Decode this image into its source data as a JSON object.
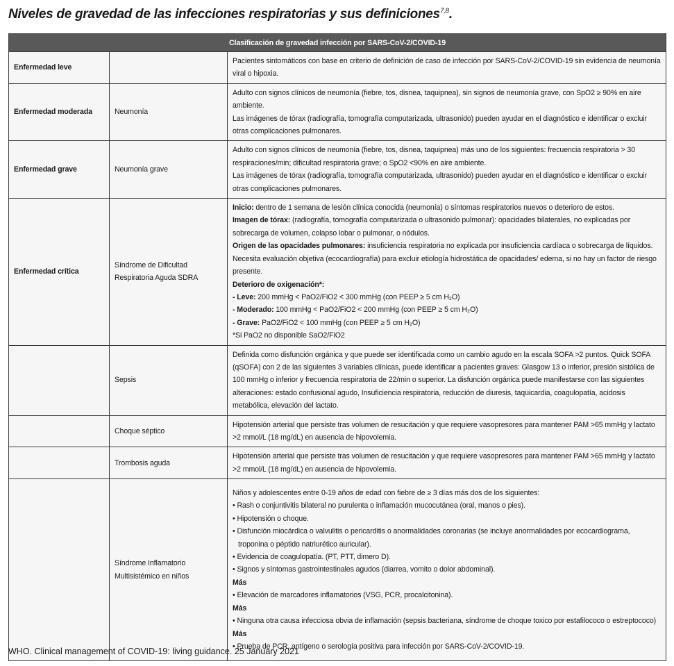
{
  "title": "Niveles de gravedad de las infecciones respiratorias y sus definiciones",
  "title_superscript": "7,8",
  "title_end": ".",
  "table": {
    "header": "Clasificación de gravedad infección por SARS-CoV-2/COVID-19",
    "rows": [
      {
        "severity": "Enfermedad leve",
        "condition": "",
        "h": 44,
        "paragraphs": [
          {
            "bold": "",
            "text": "Pacientes sintomáticos con base en criterio de definición de caso de infección por SARS-CoV-2/COVID-19 sin evidencia de neumonía viral o hipoxia."
          }
        ]
      },
      {
        "severity": "Enfermedad moderada",
        "condition": "Neumonía",
        "h": 78,
        "paragraphs": [
          {
            "bold": "",
            "text": "Adulto con signos clínicos de neumonía (fiebre, tos, disnea, taquipnea), sin signos de neumonía grave, con SpO2 ≥ 90% en aire ambiente."
          },
          {
            "bold": "",
            "text": "Las imágenes de tórax (radiografía, tomografía computarizada, ultrasonido) pueden ayudar en el diagnóstico e identificar o excluir otras complicaciones pulmonares."
          }
        ]
      },
      {
        "severity": "Enfermedad grave",
        "condition": "Neumonía grave",
        "h": 78,
        "paragraphs": [
          {
            "bold": "",
            "text": "Adulto con signos clínicos de neumonía (fiebre, tos, disnea, taquipnea) más uno de los siguientes: frecuencia respiratoria > 30 respiraciones/min; dificultad respiratoria grave; o SpO2 <90% en aire ambiente."
          },
          {
            "bold": "",
            "text": "Las imágenes de tórax (radiografía, tomografía computarizada, ultrasonido) pueden ayudar en el diagnóstico e identificar o excluir otras complicaciones pulmonares."
          }
        ]
      },
      {
        "severity": "Enfermedad crítica",
        "condition": "Síndrome de Dificultad Respiratoria Aguda SDRA",
        "h": 210,
        "paragraphs": [
          {
            "bold": "Inicio:",
            "text": " dentro de 1 semana de lesión clínica conocida (neumonía) o síntomas respiratorios nuevos o deterioro de estos."
          },
          {
            "bold": "Imagen de tórax:",
            "text": " (radiografía, tomografía computarizada o ultrasonido pulmonar): opacidades bilaterales, no explicadas por sobrecarga de volumen, colapso lobar o pulmonar, o nódulos."
          },
          {
            "bold": "Origen de las opacidades pulmonares:",
            "text": " insuficiencia respiratoria no explicada por insuficiencia cardíaca o sobrecarga de líquidos. Necesita evaluación objetiva (ecocardiografía) para excluir etiología hidrostática de opacidades/ edema, si no hay un factor de riesgo presente."
          },
          {
            "bold": "Deterioro de oxigenación*:",
            "text": ""
          },
          {
            "bold": "- Leve:",
            "text": " 200 mmHg < PaO2/FiO2 < 300 mmHg (con PEEP ≥ 5 cm H₂O)"
          },
          {
            "bold": "- Moderado:",
            "text": " 100 mmHg < PaO2/FiO2 < 200 mmHg (con PEEP ≥ 5 cm H₂O)"
          },
          {
            "bold": "- Grave:",
            "text": " PaO2/FiO2 < 100 mmHg (con PEEP ≥ 5 cm H₂O)"
          },
          {
            "bold": "",
            "text": "*Si PaO2 no disponible SaO2/FiO2"
          }
        ]
      },
      {
        "severity": "",
        "condition": "Sepsis",
        "h": 96,
        "paragraphs": [
          {
            "bold": "",
            "text": "Definida como disfunción orgánica y que puede ser identificada como un cambio agudo en la escala SOFA >2 puntos. Quick SOFA (qSOFA) con 2 de las siguientes 3 variables clínicas, puede identificar a pacientes graves: Glasgow 13 o inferior, presión sistólica de 100 mmHg o inferior y frecuencia respiratoria de 22/min o superior. La disfunción orgánica puede manifestarse con las siguientes alteraciones: estado confusional agudo, Insuficiencia respiratoria, reducción de diuresis, taquicardia, coagulopatía, acidosis metabólica, elevación del lactato."
          }
        ]
      },
      {
        "severity": "",
        "condition": "Choque séptico",
        "h": 42,
        "paragraphs": [
          {
            "bold": "",
            "text": "Hipotensión arterial que persiste tras volumen de resucitación y que requiere vasopresores para mantener PAM >65 mmHg y lactato >2 mmol/L (18 mg/dL) en ausencia de hipovolemia."
          }
        ]
      },
      {
        "severity": "",
        "condition": "Trombosis aguda",
        "h": 42,
        "paragraphs": [
          {
            "bold": "",
            "text": "Hipotensión arterial que persiste tras volumen de resucitación y que requiere vasopresores para mantener PAM >65 mmHg y lactato >2 mmol/L (18 mg/dL) en ausencia de hipovolemia."
          }
        ]
      },
      {
        "severity": "",
        "condition": "Síndrome Inflamatorio Multisistémico en niños",
        "h": 262,
        "paragraphs": [
          {
            "bold": "",
            "text": "Niños y adolescentes entre 0-19 años de edad con fiebre de ≥ 3 días más dos de los siguientes:"
          },
          {
            "bold": "",
            "text": "• Rash o conjuntivitis bilateral no purulenta o inflamación mucocutánea (oral, manos o pies)."
          },
          {
            "bold": "",
            "text": "• Hipotensión o choque."
          },
          {
            "bold": "",
            "text": "• Disfunción miocárdica o valvulitis o pericarditis o anormalidades coronarias (se incluye anormalidades por ecocardiograma, troponina o péptido natriurético auricular)."
          },
          {
            "bold": "",
            "text": "• Evidencia de coagulopatía. (PT, PTT, dimero D)."
          },
          {
            "bold": "",
            "text": "• Signos y síntomas gastrointestinales agudos (diarrea, vomito o dolor abdominal)."
          },
          {
            "bold": "Más",
            "text": ""
          },
          {
            "bold": "",
            "text": "• Elevación de marcadores inflamatorios (VSG, PCR, procalcitonina)."
          },
          {
            "bold": "Más",
            "text": ""
          },
          {
            "bold": "",
            "text": "• Ninguna otra causa infecciosa obvia de inflamación (sepsis bacteriana, síndrome de choque toxico por estafilococo o estreptococo)"
          },
          {
            "bold": "Más",
            "text": ""
          },
          {
            "bold": "",
            "text": "• Prueba de PCR, antígeno o serología positiva para infección por SARS-CoV-2/COVID-19."
          }
        ]
      }
    ]
  },
  "source": "WHO. Clinical management of COVID-19: living guidance. 25 January 2021",
  "colors": {
    "header_bg": "#595959",
    "cell_bg": "#f6f6f6",
    "border": "#3a3a3a"
  }
}
